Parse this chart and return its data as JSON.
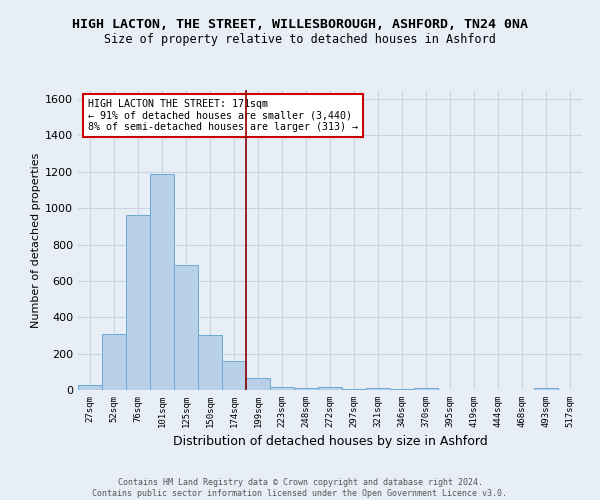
{
  "title": "HIGH LACTON, THE STREET, WILLESBOROUGH, ASHFORD, TN24 0NA",
  "subtitle": "Size of property relative to detached houses in Ashford",
  "xlabel": "Distribution of detached houses by size in Ashford",
  "ylabel": "Number of detached properties",
  "categories": [
    "27sqm",
    "52sqm",
    "76sqm",
    "101sqm",
    "125sqm",
    "150sqm",
    "174sqm",
    "199sqm",
    "223sqm",
    "248sqm",
    "272sqm",
    "297sqm",
    "321sqm",
    "346sqm",
    "370sqm",
    "395sqm",
    "419sqm",
    "444sqm",
    "468sqm",
    "493sqm",
    "517sqm"
  ],
  "values": [
    25,
    310,
    960,
    1190,
    690,
    300,
    160,
    65,
    15,
    10,
    15,
    5,
    10,
    5,
    10,
    0,
    0,
    0,
    0,
    10,
    0
  ],
  "bar_color": "#b8d0e8",
  "bar_edge_color": "#6aaad4",
  "vline_x": 6.5,
  "vline_color": "#8b0000",
  "annotation_text": "HIGH LACTON THE STREET: 171sqm\n← 91% of detached houses are smaller (3,440)\n8% of semi-detached houses are larger (313) →",
  "annotation_box_color": "white",
  "annotation_box_edge": "#cc0000",
  "ylim": [
    0,
    1650
  ],
  "yticks": [
    0,
    200,
    400,
    600,
    800,
    1000,
    1200,
    1400,
    1600
  ],
  "grid_color": "#c8d4e4",
  "bg_color": "#e8eef6",
  "footer": "Contains HM Land Registry data © Crown copyright and database right 2024.\nContains public sector information licensed under the Open Government Licence v3.0.",
  "title_fontsize": 9.5,
  "subtitle_fontsize": 8.5,
  "xlabel_fontsize": 9,
  "ylabel_fontsize": 8
}
